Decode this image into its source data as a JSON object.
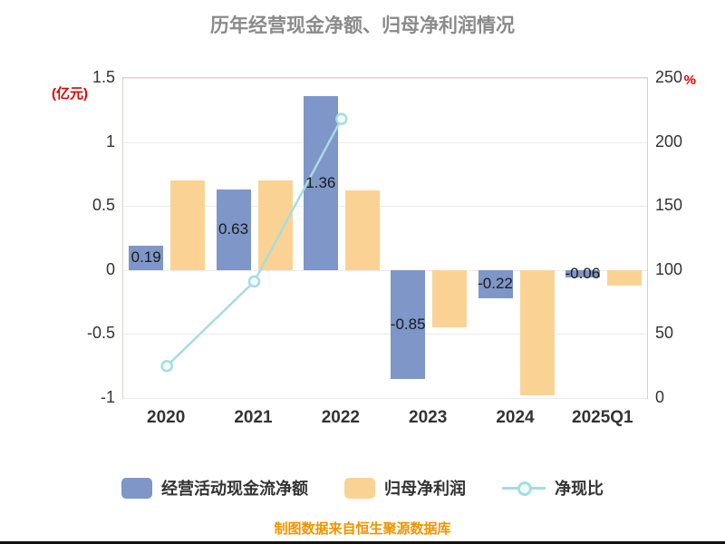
{
  "title": "历年经营现金净额、归母净利润情况",
  "footer": "制图数据来自恒生聚源数据库",
  "left_axis": {
    "unit": "(亿元)",
    "ticks": [
      1.5,
      1,
      0.5,
      0,
      -0.5,
      -1
    ]
  },
  "right_axis": {
    "unit": "%",
    "ticks": [
      250,
      200,
      150,
      100,
      50,
      0
    ]
  },
  "colors": {
    "bar_cash": "#7e96c8",
    "bar_profit": "#fad394",
    "line_ratio": "#a6dde0",
    "marker_fill": "#f2fbfc",
    "axis_unit_red": "#dd0000",
    "title_gray": "#8a8a8a",
    "footer_orange": "#ef9400"
  },
  "chart_data": {
    "type": "bar",
    "title": "历年经营现金净额、归母净利润情况",
    "categories": [
      "2020",
      "2021",
      "2022",
      "2023",
      "2024",
      "2025Q1"
    ],
    "series": [
      {
        "name": "经营活动现金流净额",
        "type": "bar",
        "axis": "left",
        "color": "#7e96c8",
        "values": [
          0.19,
          0.63,
          1.36,
          -0.85,
          -0.22,
          -0.06
        ],
        "labels": [
          "0.19",
          "0.63",
          "1.36",
          "-0.85",
          "-0.22",
          "-0.06"
        ]
      },
      {
        "name": "归母净利润",
        "type": "bar",
        "axis": "left",
        "color": "#fad394",
        "values": [
          0.7,
          0.7,
          0.62,
          -0.45,
          -0.98,
          -0.12
        ]
      },
      {
        "name": "净现比",
        "type": "line",
        "axis": "right",
        "color": "#a6dde0",
        "values": [
          25,
          91,
          218,
          null,
          null,
          null
        ]
      }
    ],
    "left_ylim": [
      -1,
      1.5
    ],
    "right_ylim": [
      0,
      250
    ],
    "left_unit": "(亿元)",
    "right_unit": "%",
    "grid": true,
    "legend_position": "bottom"
  }
}
